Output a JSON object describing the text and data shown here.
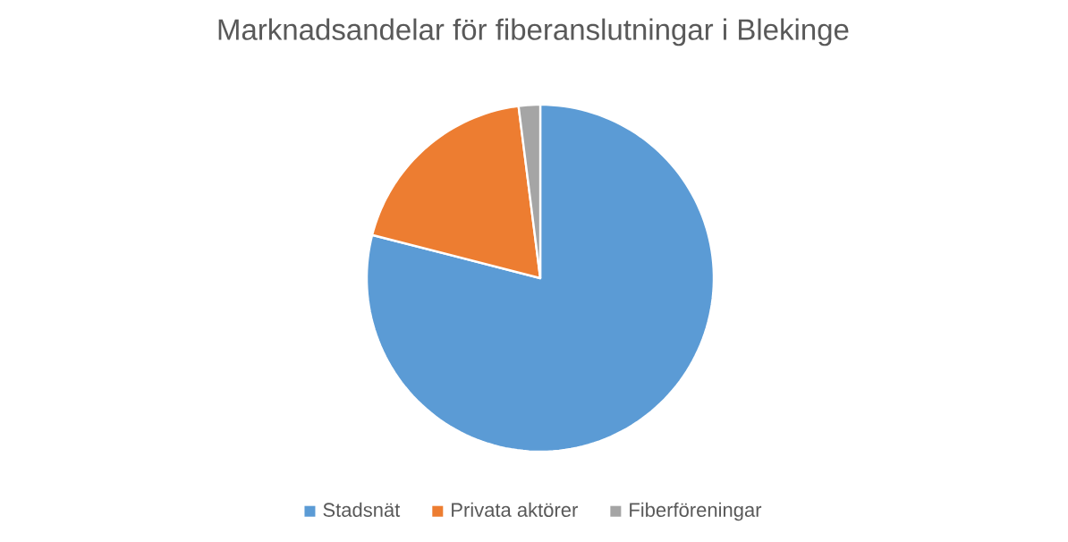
{
  "chart_data": {
    "type": "pie",
    "title": "Marknadsandelar för fiberanslutningar i Blekinge",
    "categories": [
      "Stadsnät",
      "Privata aktörer",
      "Fiberföreningar"
    ],
    "values": [
      79,
      19,
      2
    ],
    "colors": [
      "#5b9bd5",
      "#ed7d31",
      "#a5a5a5"
    ],
    "legend": "bottom"
  }
}
